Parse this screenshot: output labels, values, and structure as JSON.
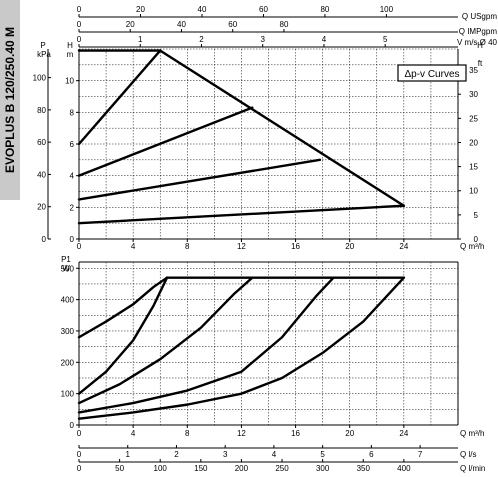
{
  "side_title": "EVOPLUS B 120/250.40 M",
  "chart_data": [
    {
      "type": "line",
      "legend_box": "Δp-v Curves",
      "x_label": "Q m³/h",
      "x_ticks": [
        "0",
        "4",
        "8",
        "12",
        "16",
        "20",
        "24"
      ],
      "xlim": [
        0,
        28
      ],
      "ylim_m": [
        0,
        12
      ],
      "y_label_m": "H m",
      "y_ticks_m": [
        "0",
        "2",
        "4",
        "6",
        "8",
        "10"
      ],
      "y_label_kpa": "P kPa",
      "y_ticks_kpa": [
        "0",
        "20",
        "40",
        "60",
        "80",
        "100"
      ],
      "y_label_ft": "H ft",
      "y_ticks_ft": [
        "0",
        "5",
        "10",
        "15",
        "20",
        "25",
        "30",
        "35"
      ],
      "top_axes": [
        {
          "label": "Q USgpm",
          "ticks": [
            "0",
            "20",
            "40",
            "60",
            "80",
            "100"
          ]
        },
        {
          "label": "Q IMPgpm",
          "ticks": [
            "0",
            "20",
            "40",
            "60",
            "80"
          ]
        },
        {
          "label": "V m/s Ø 40",
          "ticks": [
            "0",
            "1",
            "2",
            "3",
            "4",
            "5"
          ]
        }
      ],
      "series": [
        {
          "x": [
            0,
            6
          ],
          "y": [
            11.9,
            11.9
          ]
        },
        {
          "x": [
            6,
            24
          ],
          "y": [
            11.9,
            2.1
          ]
        },
        {
          "x": [
            0,
            6
          ],
          "y": [
            6.0,
            11.9
          ]
        },
        {
          "x": [
            0,
            12.8
          ],
          "y": [
            4.0,
            8.3
          ]
        },
        {
          "x": [
            0,
            17.8
          ],
          "y": [
            2.5,
            5.0
          ]
        },
        {
          "x": [
            0,
            24
          ],
          "y": [
            1.0,
            2.1
          ]
        }
      ]
    },
    {
      "type": "line",
      "y_label": "P1 W",
      "ylim": [
        0,
        500
      ],
      "y_ticks": [
        "0",
        "100",
        "200",
        "300",
        "400",
        "500"
      ],
      "x_label": "Q m³/h",
      "x_ticks": [
        "0",
        "4",
        "8",
        "12",
        "16",
        "20",
        "24"
      ],
      "xlim": [
        0,
        28
      ],
      "bottom_axes": [
        {
          "label": "Q l/s",
          "ticks": [
            "0",
            "1",
            "2",
            "3",
            "4",
            "5",
            "6",
            "7"
          ]
        },
        {
          "label": "Q l/min",
          "ticks": [
            "0",
            "50",
            "100",
            "150",
            "200",
            "250",
            "300",
            "350",
            "400"
          ]
        }
      ],
      "series": [
        {
          "x": [
            6.5,
            24
          ],
          "y": [
            470,
            470
          ]
        },
        {
          "x": [
            0,
            2,
            4,
            5.5,
            6.5
          ],
          "y": [
            280,
            330,
            385,
            440,
            470
          ]
        },
        {
          "x": [
            0,
            2,
            4,
            5.5,
            6.5
          ],
          "y": [
            100,
            170,
            270,
            380,
            470
          ]
        },
        {
          "x": [
            0,
            3,
            6,
            9,
            11.5,
            12.8
          ],
          "y": [
            70,
            130,
            210,
            310,
            420,
            470
          ]
        },
        {
          "x": [
            0,
            4,
            8,
            12,
            15,
            17.5,
            18.8
          ],
          "y": [
            40,
            70,
            110,
            170,
            280,
            410,
            470
          ]
        },
        {
          "x": [
            0,
            4,
            8,
            12,
            15,
            18,
            21,
            24
          ],
          "y": [
            20,
            40,
            65,
            100,
            150,
            230,
            330,
            470
          ]
        }
      ]
    }
  ]
}
